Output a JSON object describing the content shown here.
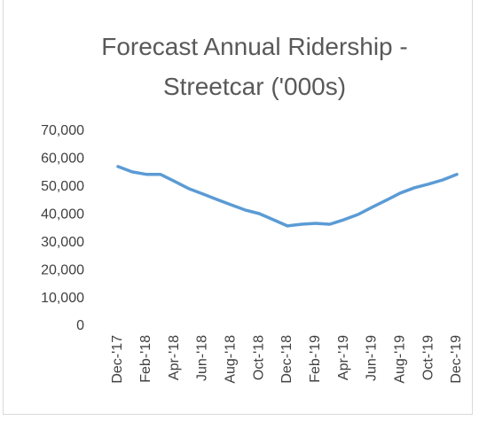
{
  "chart_data": {
    "type": "line",
    "title": "Forecast Annual Ridership - Streetcar ('000s)",
    "categories": [
      "Dec-'17",
      null,
      "Feb-'18",
      null,
      "Apr-'18",
      null,
      "Jun-'18",
      null,
      "Aug-'18",
      null,
      "Oct-'18",
      null,
      "Dec-'18",
      null,
      "Feb-'19",
      null,
      "Apr-'19",
      null,
      "Jun-'19",
      null,
      "Aug-'19",
      null,
      "Oct-'19",
      null,
      "Dec-'19"
    ],
    "series": [
      {
        "name": "Streetcar",
        "color": "#5b9bd5",
        "values": [
          57300,
          55400,
          54500,
          54500,
          52000,
          49400,
          47500,
          45500,
          43600,
          41700,
          40400,
          38200,
          36000,
          36600,
          36900,
          36600,
          38200,
          40100,
          42700,
          45200,
          47800,
          49700,
          51000,
          52500,
          54500
        ]
      }
    ],
    "ylim": [
      0,
      70000
    ],
    "yticks": [
      0,
      {
        "value": 10000,
        "label": "10,000"
      },
      {
        "value": 20000,
        "label": "20,000"
      },
      {
        "value": 30000,
        "label": "30,000"
      },
      {
        "value": 40000,
        "label": "40,000"
      },
      {
        "value": 50000,
        "label": "50,000"
      },
      {
        "value": 60000,
        "label": "60,000"
      },
      {
        "value": 70000,
        "label": "70,000"
      }
    ],
    "grid": false
  }
}
